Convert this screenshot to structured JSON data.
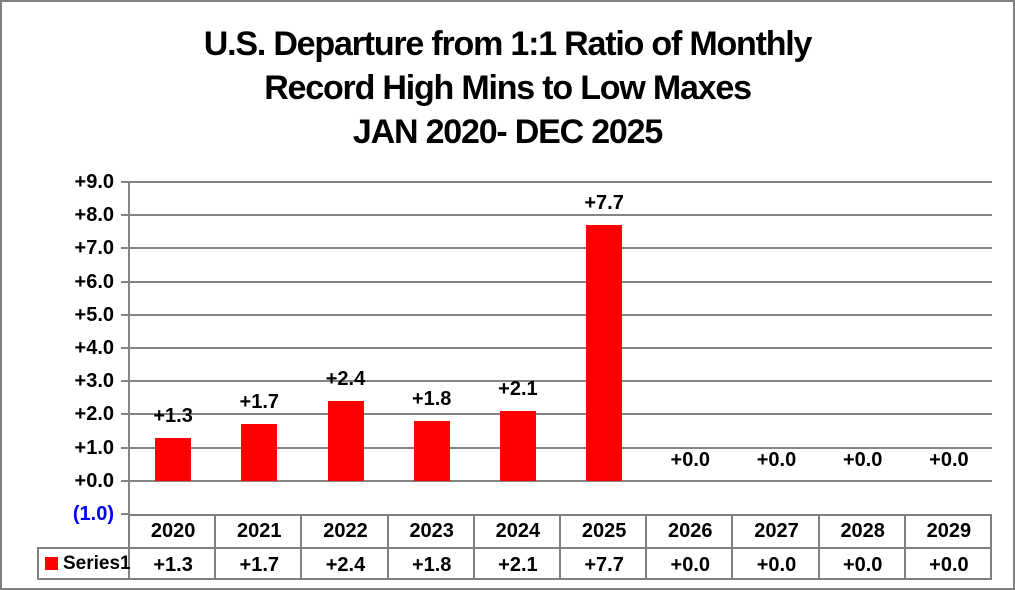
{
  "chart_data": {
    "type": "bar",
    "title_lines": [
      "U.S. Departure from 1:1 Ratio of Monthly",
      "Record High Mins to Low Maxes",
      "JAN 2020- DEC 2025"
    ],
    "categories": [
      "2020",
      "2021",
      "2022",
      "2023",
      "2024",
      "2025",
      "2026",
      "2027",
      "2028",
      "2029"
    ],
    "series": [
      {
        "name": "Series1",
        "values": [
          1.3,
          1.7,
          2.4,
          1.8,
          2.1,
          7.7,
          0.0,
          0.0,
          0.0,
          0.0
        ],
        "value_labels": [
          "+1.3",
          "+1.7",
          "+2.4",
          "+1.8",
          "+2.1",
          "+7.7",
          "+0.0",
          "+0.0",
          "+0.0",
          "+0.0"
        ]
      }
    ],
    "y_axis": {
      "min": -1,
      "max": 9,
      "step": 1,
      "tick_labels": [
        "+9.0",
        "+8.0",
        "+7.0",
        "+6.0",
        "+5.0",
        "+4.0",
        "+3.0",
        "+2.0",
        "+1.0",
        "+0.0",
        "(1.0)"
      ]
    },
    "grid": true,
    "legend_position": "bottom-table",
    "colors": {
      "bar": "#ff0000",
      "grid": "#858585",
      "axis": "#858585",
      "table_border": "#808080",
      "text": "#000000",
      "negative_tick_label": "#0000ff",
      "background": "#ffffff",
      "outer_border": "#808080"
    }
  }
}
